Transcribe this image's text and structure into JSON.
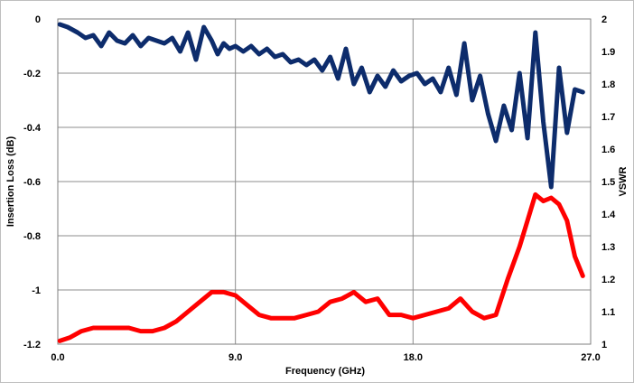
{
  "chart_data": {
    "type": "line",
    "xlabel": "Frequency (GHz)",
    "ylabel": "Insertion Loss (dB)",
    "y2label": "VSWR",
    "xlim": [
      0,
      27
    ],
    "ylim": [
      -1.2,
      0
    ],
    "y2lim": [
      1,
      2
    ],
    "x_ticks": [
      "0.0",
      "9.0",
      "18.0",
      "27.0"
    ],
    "y_ticks": [
      "0",
      "-0.2",
      "-0.4",
      "-0.6",
      "-0.8",
      "-1",
      "-1.2"
    ],
    "y2_ticks": [
      "2",
      "1.9",
      "1.8",
      "1.7",
      "1.6",
      "1.5",
      "1.4",
      "1.3",
      "1.2",
      "1.1",
      "1"
    ],
    "grid": true,
    "series": [
      {
        "axis": "left",
        "color": "#0d2c6c",
        "x": [
          0.1,
          0.5,
          1.0,
          1.4,
          1.8,
          2.2,
          2.6,
          3.0,
          3.4,
          3.8,
          4.2,
          4.6,
          5.0,
          5.4,
          5.8,
          6.2,
          6.6,
          7.0,
          7.4,
          7.8,
          8.1,
          8.4,
          8.7,
          9.0,
          9.4,
          9.8,
          10.2,
          10.6,
          11.0,
          11.4,
          11.8,
          12.2,
          12.6,
          13.0,
          13.4,
          13.8,
          14.2,
          14.6,
          15.0,
          15.4,
          15.8,
          16.2,
          16.6,
          17.0,
          17.4,
          17.8,
          18.2,
          18.6,
          19.0,
          19.4,
          19.8,
          20.2,
          20.6,
          21.0,
          21.4,
          21.8,
          22.2,
          22.6,
          23.0,
          23.4,
          23.8,
          24.2,
          24.6,
          25.0,
          25.4,
          25.8,
          26.2,
          26.6
        ],
        "values": [
          -0.02,
          -0.03,
          -0.05,
          -0.07,
          -0.06,
          -0.1,
          -0.05,
          -0.08,
          -0.09,
          -0.06,
          -0.1,
          -0.07,
          -0.08,
          -0.09,
          -0.07,
          -0.12,
          -0.05,
          -0.15,
          -0.03,
          -0.08,
          -0.13,
          -0.09,
          -0.11,
          -0.1,
          -0.12,
          -0.1,
          -0.13,
          -0.11,
          -0.14,
          -0.13,
          -0.16,
          -0.15,
          -0.17,
          -0.15,
          -0.19,
          -0.14,
          -0.22,
          -0.11,
          -0.24,
          -0.18,
          -0.27,
          -0.21,
          -0.25,
          -0.19,
          -0.23,
          -0.21,
          -0.2,
          -0.24,
          -0.22,
          -0.27,
          -0.18,
          -0.28,
          -0.09,
          -0.3,
          -0.21,
          -0.35,
          -0.45,
          -0.32,
          -0.41,
          -0.2,
          -0.44,
          -0.05,
          -0.38,
          -0.62,
          -0.18,
          -0.42,
          -0.26,
          -0.27
        ]
      },
      {
        "axis": "right",
        "color": "#ff0000",
        "x": [
          0.1,
          0.6,
          1.2,
          1.8,
          2.4,
          3.0,
          3.6,
          4.2,
          4.8,
          5.4,
          6.0,
          6.6,
          7.2,
          7.8,
          8.4,
          9.0,
          9.6,
          10.2,
          10.8,
          11.4,
          12.0,
          12.6,
          13.2,
          13.8,
          14.4,
          15.0,
          15.6,
          16.2,
          16.8,
          17.4,
          18.0,
          18.6,
          19.2,
          19.8,
          20.4,
          21.0,
          21.6,
          22.2,
          22.8,
          23.4,
          23.8,
          24.2,
          24.6,
          25.0,
          25.4,
          25.8,
          26.2,
          26.6
        ],
        "values": [
          1.01,
          1.02,
          1.04,
          1.05,
          1.05,
          1.05,
          1.05,
          1.04,
          1.04,
          1.05,
          1.07,
          1.1,
          1.13,
          1.16,
          1.16,
          1.15,
          1.12,
          1.09,
          1.08,
          1.08,
          1.08,
          1.09,
          1.1,
          1.13,
          1.14,
          1.16,
          1.13,
          1.14,
          1.09,
          1.09,
          1.08,
          1.09,
          1.1,
          1.11,
          1.14,
          1.1,
          1.08,
          1.09,
          1.2,
          1.3,
          1.38,
          1.46,
          1.44,
          1.45,
          1.43,
          1.38,
          1.27,
          1.21
        ]
      }
    ]
  }
}
